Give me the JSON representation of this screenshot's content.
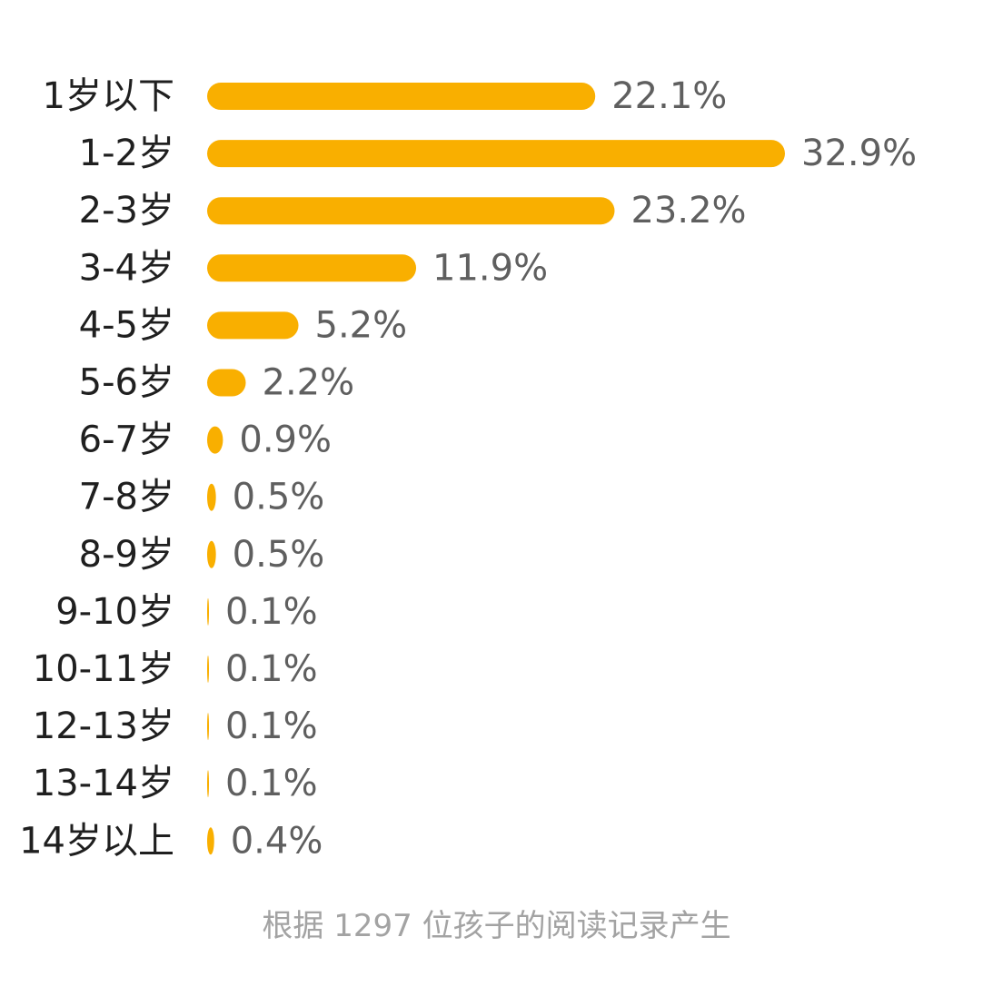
{
  "chart_data": {
    "type": "bar",
    "orientation": "horizontal",
    "categories": [
      "1岁以下",
      "1-2岁",
      "2-3岁",
      "3-4岁",
      "4-5岁",
      "5-6岁",
      "6-7岁",
      "7-8岁",
      "8-9岁",
      "9-10岁",
      "10-11岁",
      "12-13岁",
      "13-14岁",
      "14岁以上"
    ],
    "values": [
      22.1,
      32.9,
      23.2,
      11.9,
      5.2,
      2.2,
      0.9,
      0.5,
      0.5,
      0.1,
      0.1,
      0.1,
      0.1,
      0.4
    ],
    "value_labels": [
      "22.1%",
      "32.9%",
      "23.2%",
      "11.9%",
      "5.2%",
      "2.2%",
      "0.9%",
      "0.5%",
      "0.5%",
      "0.1%",
      "0.1%",
      "0.1%",
      "0.1%",
      "0.4%"
    ],
    "bar_color": "#F9AF00",
    "grid": false,
    "legend": "none"
  },
  "footnote": "根据 1297 位孩子的阅读记录产生"
}
